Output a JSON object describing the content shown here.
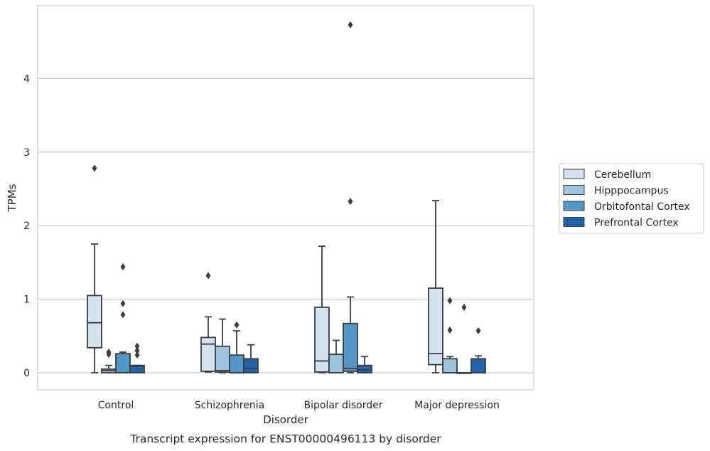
{
  "chart_data": {
    "type": "box",
    "caption": "Transcript expression for ENST00000496113 by disorder",
    "xlabel": "Disorder",
    "ylabel": "TPMs",
    "ylim": [
      -0.23,
      5.0
    ],
    "yticks": [
      0,
      1,
      2,
      3,
      4
    ],
    "grid": true,
    "legend_position": "right",
    "categories": [
      "Control",
      "Schizophrenia",
      "Bipolar disorder",
      "Major depression"
    ],
    "series": [
      {
        "name": "Cerebellum",
        "color": "#d3e2f1",
        "boxes": [
          {
            "whislo": 0.0,
            "q1": 0.34,
            "med": 0.68,
            "q3": 1.05,
            "whishi": 1.75,
            "fliers": [
              2.78
            ]
          },
          {
            "whislo": 0.01,
            "q1": 0.02,
            "med": 0.39,
            "q3": 0.48,
            "whishi": 0.76,
            "fliers": [
              1.32
            ]
          },
          {
            "whislo": 0.0,
            "q1": 0.01,
            "med": 0.16,
            "q3": 0.89,
            "whishi": 1.72,
            "fliers": []
          },
          {
            "whislo": 0.0,
            "q1": 0.11,
            "med": 0.26,
            "q3": 1.15,
            "whishi": 2.34,
            "fliers": []
          }
        ]
      },
      {
        "name": "Hipppocampus",
        "color": "#9cc4df",
        "boxes": [
          {
            "whislo": 0.0,
            "q1": 0.0,
            "med": 0.03,
            "q3": 0.05,
            "whishi": 0.1,
            "fliers": [
              0.25,
              0.28
            ]
          },
          {
            "whislo": 0.0,
            "q1": 0.01,
            "med": 0.03,
            "q3": 0.36,
            "whishi": 0.73,
            "fliers": []
          },
          {
            "whislo": 0.0,
            "q1": 0.0,
            "med": 0.0,
            "q3": 0.25,
            "whishi": 0.44,
            "fliers": []
          },
          {
            "whislo": 0.0,
            "q1": 0.0,
            "med": 0.0,
            "q3": 0.19,
            "whishi": 0.22,
            "fliers": [
              0.58,
              0.98
            ]
          }
        ]
      },
      {
        "name": "Orbitofontal Cortex",
        "color": "#5298c6",
        "boxes": [
          {
            "whislo": 0.0,
            "q1": 0.0,
            "med": 0.0,
            "q3": 0.26,
            "whishi": 0.28,
            "fliers": [
              0.79,
              0.94,
              1.44
            ]
          },
          {
            "whislo": 0.0,
            "q1": 0.0,
            "med": 0.0,
            "q3": 0.24,
            "whishi": 0.57,
            "fliers": [
              0.65
            ]
          },
          {
            "whislo": 0.0,
            "q1": 0.02,
            "med": 0.06,
            "q3": 0.67,
            "whishi": 1.03,
            "fliers": [
              2.33,
              4.73
            ]
          },
          {
            "whislo": 0.0,
            "q1": 0.0,
            "med": 0.0,
            "q3": 0.0,
            "whishi": 0.0,
            "fliers": [
              0.89
            ]
          }
        ]
      },
      {
        "name": "Prefrontal Cortex",
        "color": "#2063a9",
        "boxes": [
          {
            "whislo": 0.0,
            "q1": 0.0,
            "med": 0.09,
            "q3": 0.1,
            "whishi": 0.1,
            "fliers": [
              0.24,
              0.3,
              0.36
            ]
          },
          {
            "whislo": 0.0,
            "q1": 0.0,
            "med": 0.06,
            "q3": 0.19,
            "whishi": 0.38,
            "fliers": []
          },
          {
            "whislo": 0.0,
            "q1": 0.0,
            "med": 0.04,
            "q3": 0.1,
            "whishi": 0.22,
            "fliers": []
          },
          {
            "whislo": 0.0,
            "q1": 0.0,
            "med": 0.0,
            "q3": 0.19,
            "whishi": 0.23,
            "fliers": [
              0.57
            ]
          }
        ]
      }
    ]
  }
}
